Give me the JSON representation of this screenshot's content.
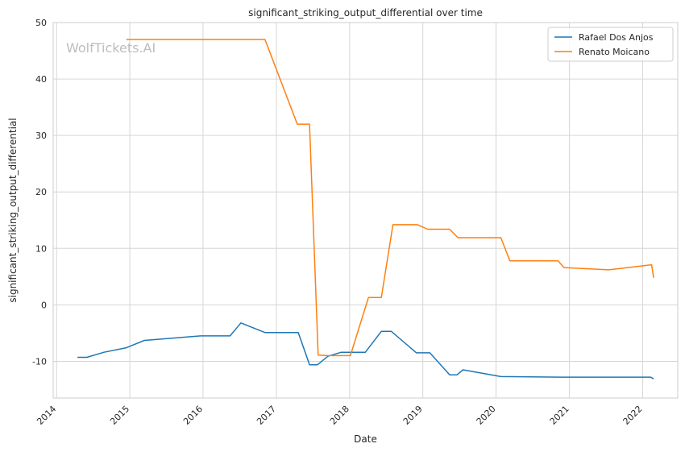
{
  "chart_data": {
    "type": "line",
    "title": "significant_striking_output_differential over time",
    "xlabel": "Date",
    "ylabel": "significant_striking_output_differential",
    "watermark": "WolfTickets.AI",
    "xlim": [
      "2013-12-15",
      "2022-06-25"
    ],
    "ylim": [
      -16.5,
      50
    ],
    "yticks": [
      -10,
      0,
      10,
      20,
      30,
      40,
      50
    ],
    "xticks": [
      "2014",
      "2015",
      "2016",
      "2017",
      "2018",
      "2019",
      "2020",
      "2021",
      "2022"
    ],
    "grid": true,
    "legend_position": "top-right",
    "series": [
      {
        "name": "Rafael Dos Anjos",
        "color": "#1f77b4",
        "points": [
          [
            "2014-04-15",
            -9.3
          ],
          [
            "2014-06-01",
            -9.3
          ],
          [
            "2014-08-25",
            -8.4
          ],
          [
            "2014-12-15",
            -7.6
          ],
          [
            "2015-03-15",
            -6.3
          ],
          [
            "2015-12-20",
            -5.5
          ],
          [
            "2016-05-15",
            -5.5
          ],
          [
            "2016-07-08",
            -3.2
          ],
          [
            "2016-11-05",
            -4.9
          ],
          [
            "2017-04-20",
            -4.9
          ],
          [
            "2017-06-15",
            -10.6
          ],
          [
            "2017-07-25",
            -10.6
          ],
          [
            "2017-09-15",
            -9.1
          ],
          [
            "2017-11-20",
            -8.4
          ],
          [
            "2018-03-20",
            -8.4
          ],
          [
            "2018-06-08",
            -4.7
          ],
          [
            "2018-07-28",
            -4.7
          ],
          [
            "2018-11-30",
            -8.5
          ],
          [
            "2019-02-05",
            -8.5
          ],
          [
            "2019-05-15",
            -12.4
          ],
          [
            "2019-06-20",
            -12.4
          ],
          [
            "2019-07-20",
            -11.5
          ],
          [
            "2020-01-25",
            -12.7
          ],
          [
            "2020-11-20",
            -12.8
          ],
          [
            "2022-02-10",
            -12.8
          ],
          [
            "2022-02-25",
            -13.1
          ]
        ]
      },
      {
        "name": "Renato Moicano",
        "color": "#ff7f0e",
        "points": [
          [
            "2014-12-15",
            47
          ],
          [
            "2016-11-05",
            47
          ],
          [
            "2017-04-15",
            32
          ],
          [
            "2017-06-15",
            32
          ],
          [
            "2017-07-28",
            -8.9
          ],
          [
            "2017-09-15",
            -9.0
          ],
          [
            "2018-01-05",
            -9.0
          ],
          [
            "2018-04-05",
            1.3
          ],
          [
            "2018-06-08",
            1.3
          ],
          [
            "2018-08-05",
            14.2
          ],
          [
            "2018-12-05",
            14.2
          ],
          [
            "2019-01-25",
            13.4
          ],
          [
            "2019-05-15",
            13.4
          ],
          [
            "2019-06-25",
            11.9
          ],
          [
            "2020-01-25",
            11.9
          ],
          [
            "2020-03-10",
            7.8
          ],
          [
            "2020-11-05",
            7.8
          ],
          [
            "2020-12-05",
            6.6
          ],
          [
            "2021-07-15",
            6.2
          ],
          [
            "2022-02-15",
            7.1
          ],
          [
            "2022-02-25",
            4.8
          ]
        ]
      }
    ]
  }
}
